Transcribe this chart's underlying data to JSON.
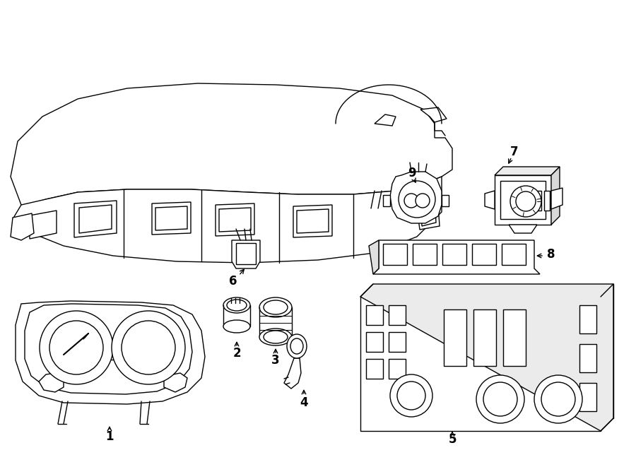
{
  "background_color": "#ffffff",
  "line_color": "#000000",
  "line_width": 1.0,
  "figure_width": 9.0,
  "figure_height": 6.61,
  "dpi": 100
}
